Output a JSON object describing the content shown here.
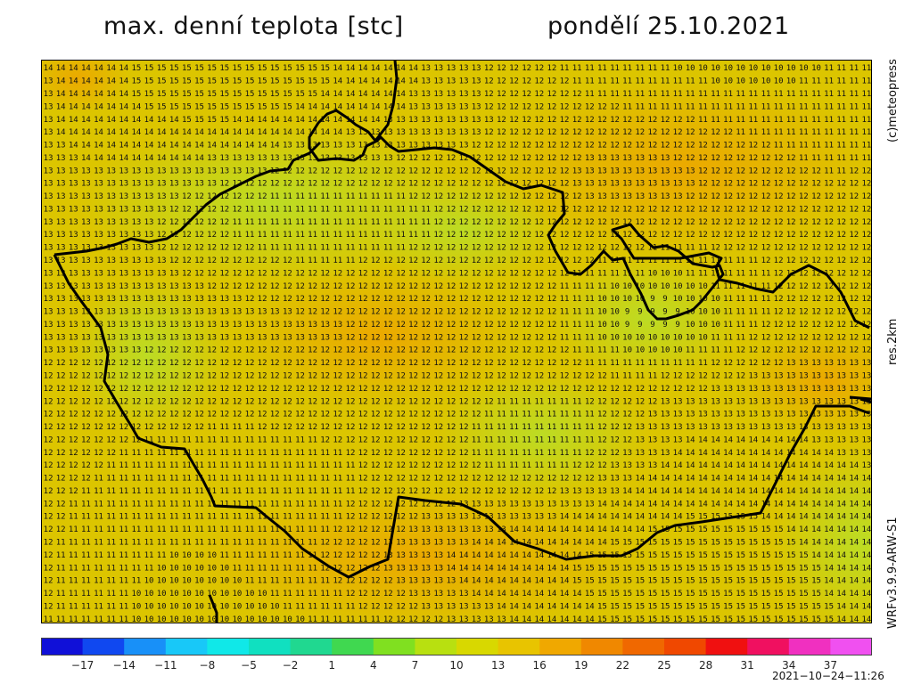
{
  "header": {
    "title": "max. denní teplota [stc]",
    "date": "pondělí 25.10.2021"
  },
  "side_labels": {
    "credit": "(c)meteopress",
    "resolution": "res.2km",
    "model": "WRFv3.9.9-ARW-S1"
  },
  "colorbar": {
    "tick_labels": [
      "−17",
      "−14",
      "−11",
      "−8",
      "−5",
      "−2",
      "1",
      "4",
      "7",
      "10",
      "13",
      "16",
      "19",
      "22",
      "25",
      "28",
      "31",
      "34",
      "37"
    ],
    "range": [
      -20,
      40
    ],
    "colors": [
      "#1010d8",
      "#1048f0",
      "#1890f8",
      "#18c8f8",
      "#10e8e8",
      "#10e0c0",
      "#20d890",
      "#40d850",
      "#80e020",
      "#b8e010",
      "#d8d800",
      "#e8c400",
      "#f0a800",
      "#f08800",
      "#f06800",
      "#f04800",
      "#f01010",
      "#f01060",
      "#f030c0",
      "#f050f0"
    ]
  },
  "map": {
    "value_columns": 66,
    "value_rows": 44,
    "color_low": "#b7e02a",
    "color_mid": "#dcc500",
    "color_high": "#efa200",
    "border_color": "#000000"
  },
  "timestamp": "2021−10−24−11:26"
}
